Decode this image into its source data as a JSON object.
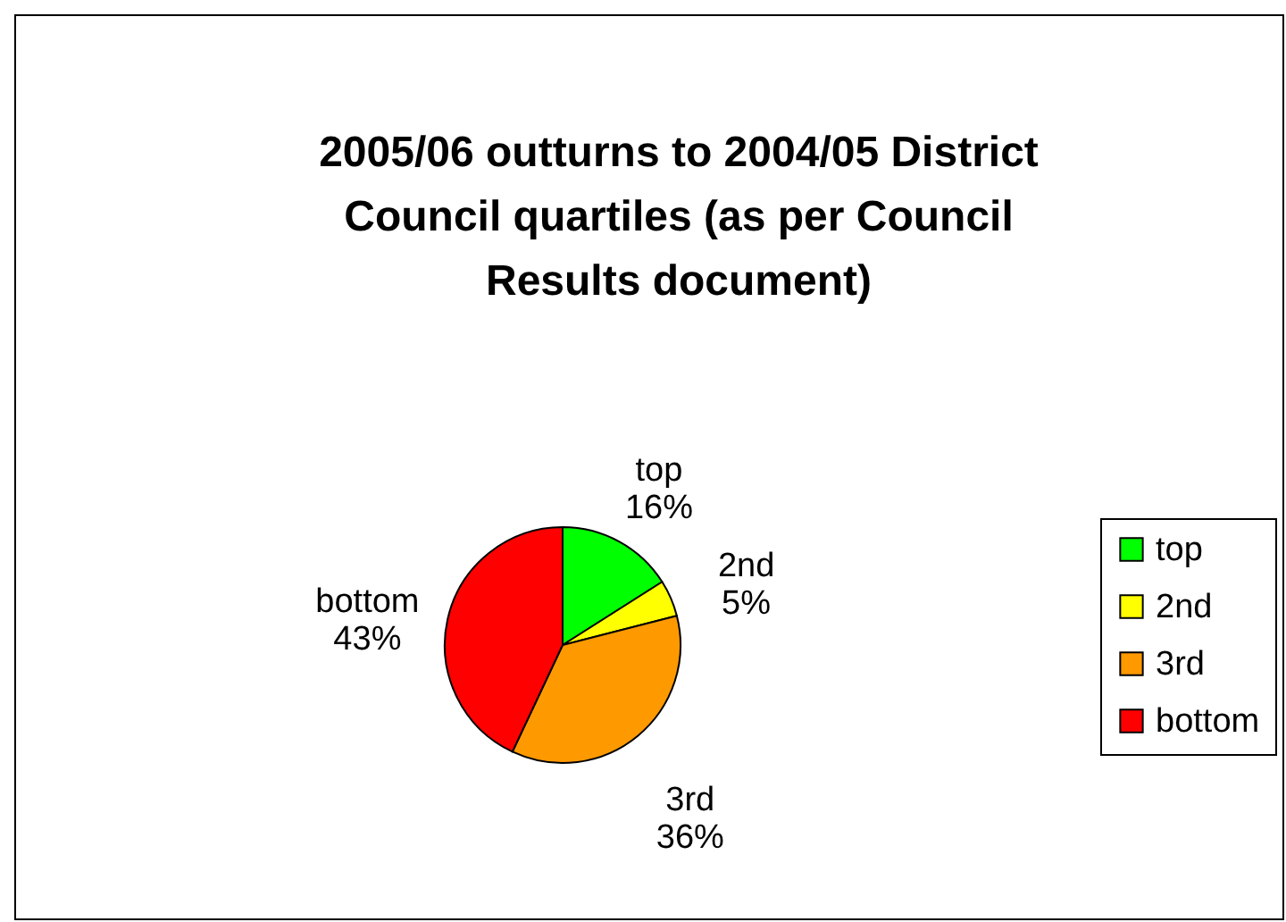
{
  "chart_data": {
    "type": "pie",
    "title": "2005/06 outturns to 2004/05 District Council quartiles (as per Council Results document)",
    "categories": [
      "top",
      "2nd",
      "3rd",
      "bottom"
    ],
    "values": [
      16,
      5,
      36,
      43
    ],
    "value_labels": [
      "16%",
      "5%",
      "36%",
      "43%"
    ],
    "colors": [
      "#00ff00",
      "#ffff00",
      "#ff9900",
      "#ff0000"
    ],
    "legend": "right"
  }
}
